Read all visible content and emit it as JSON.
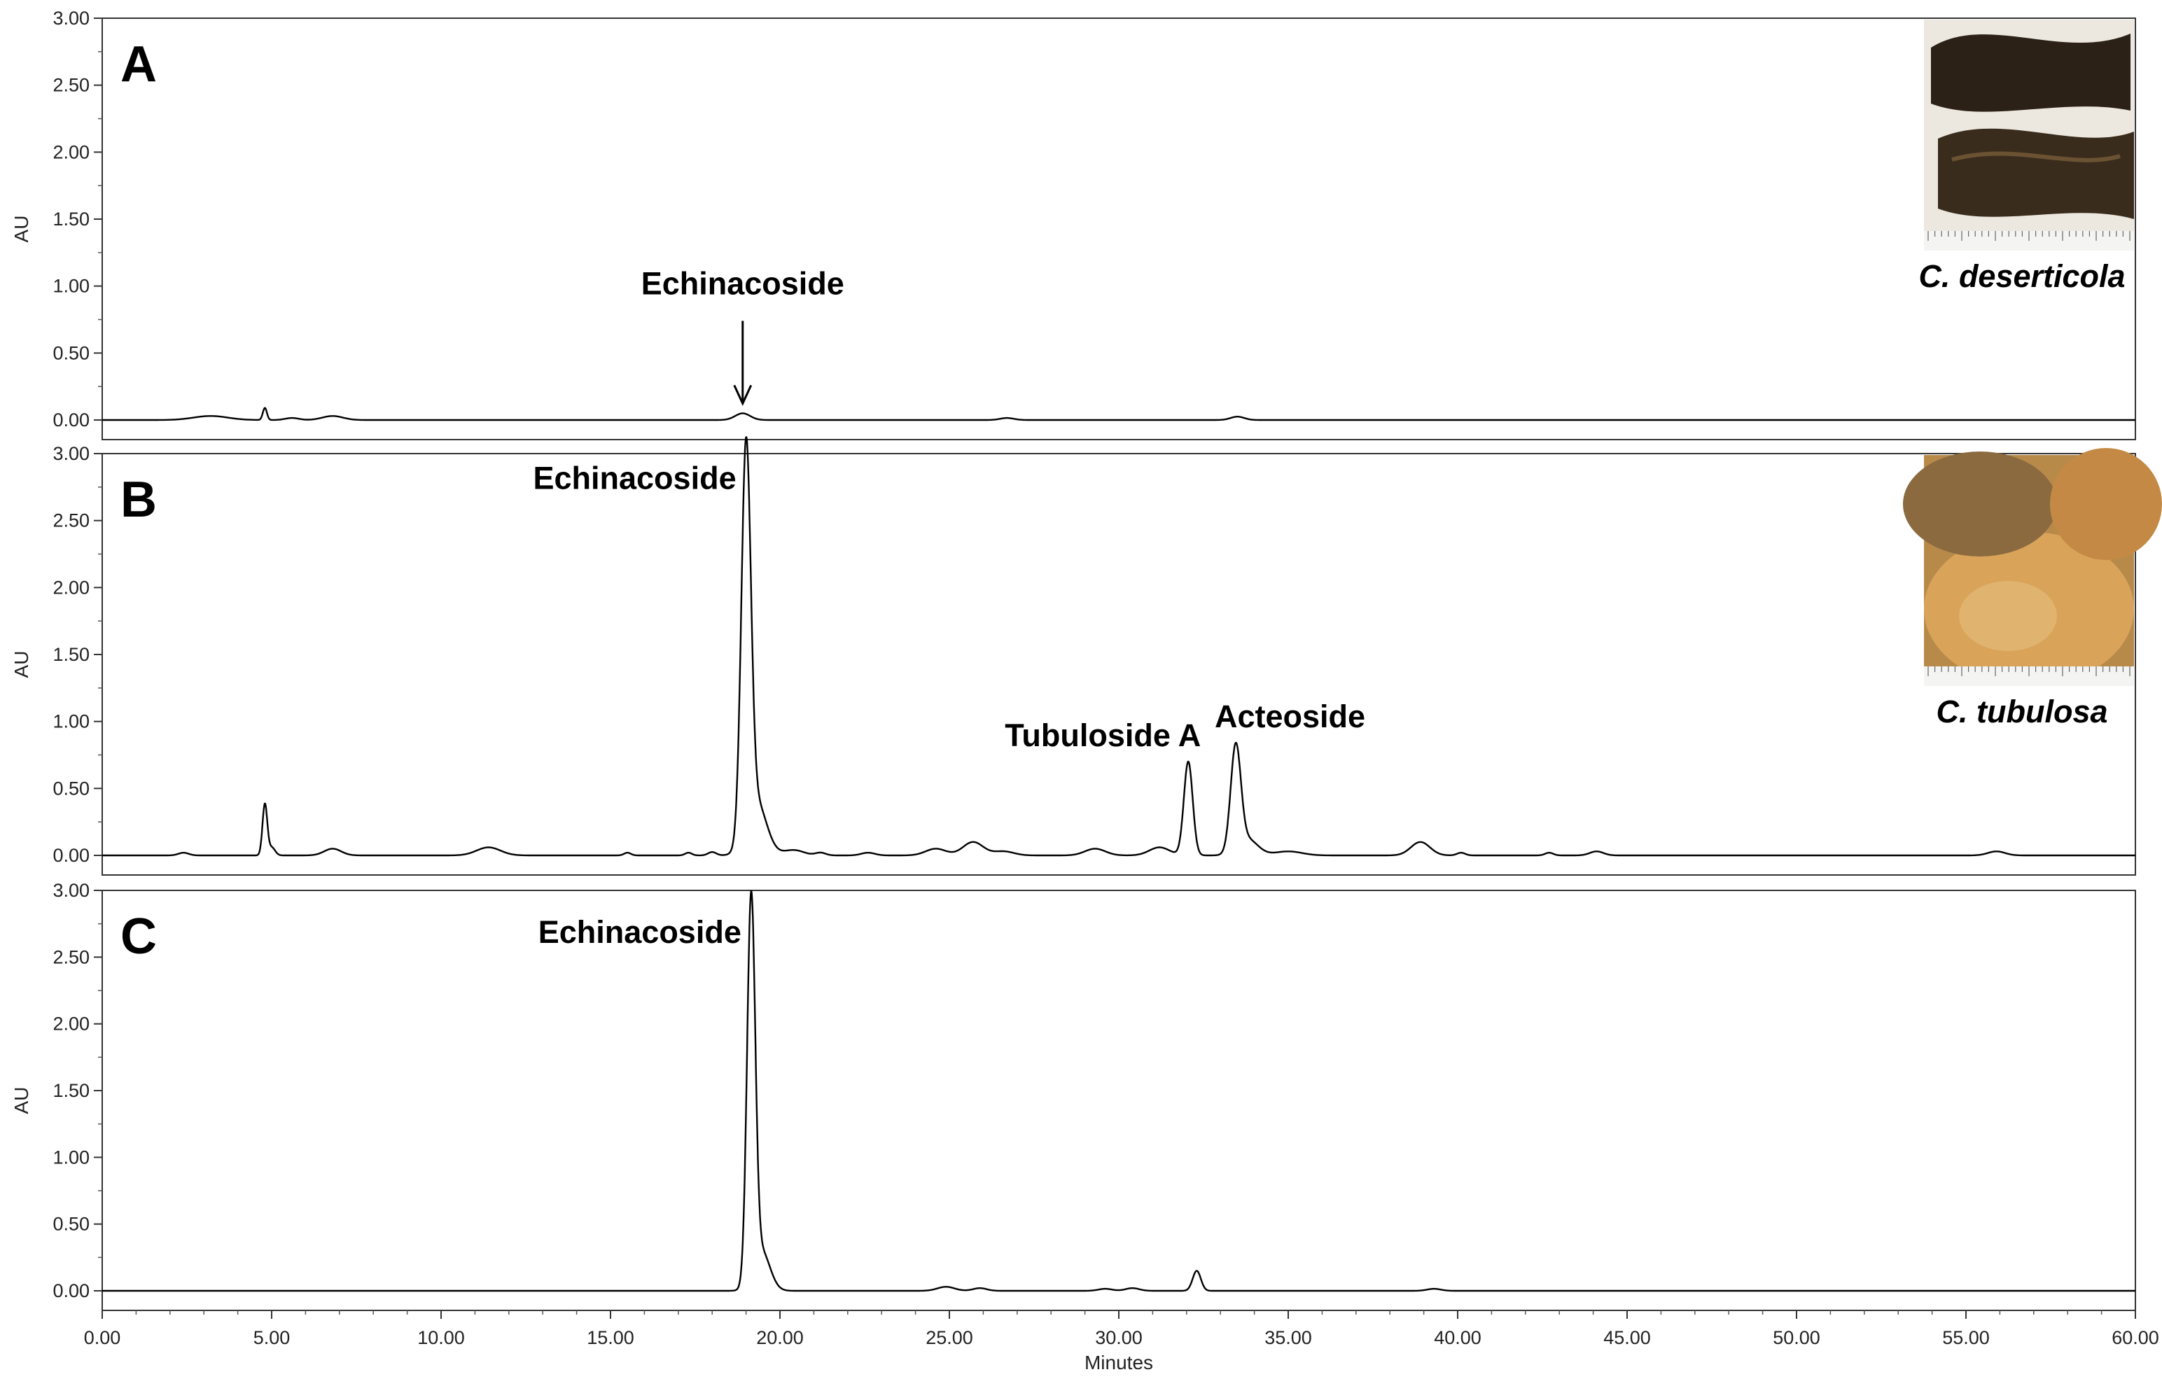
{
  "chart_data": {
    "type": "line",
    "x": {
      "label": "Minutes",
      "range": [
        0,
        60
      ],
      "ticks": [
        "0.00",
        "5.00",
        "10.00",
        "15.00",
        "20.00",
        "25.00",
        "30.00",
        "35.00",
        "40.00",
        "45.00",
        "50.00",
        "55.00",
        "60.00"
      ],
      "tick_values": [
        0,
        5,
        10,
        15,
        20,
        25,
        30,
        35,
        40,
        45,
        50,
        55,
        60
      ]
    },
    "panels": [
      {
        "letter": "A",
        "ylabel": "AU",
        "ylim": [
          0,
          3
        ],
        "y_ticks": [
          "0.00",
          "0.50",
          "1.00",
          "1.50",
          "2.00",
          "2.50",
          "3.00"
        ],
        "y_tick_values": [
          0,
          0.5,
          1,
          1.5,
          2,
          2.5,
          3
        ],
        "species": "C. deserticola",
        "photo": "dark-dried-stem-photo",
        "peaks": [
          {
            "t": 3.2,
            "h": 0.03,
            "w": 0.5
          },
          {
            "t": 4.8,
            "h": 0.09,
            "w": 0.06
          },
          {
            "t": 5.6,
            "h": 0.015,
            "w": 0.2
          },
          {
            "t": 6.8,
            "h": 0.03,
            "w": 0.3
          },
          {
            "t": 18.9,
            "h": 0.05,
            "w": 0.22
          },
          {
            "t": 26.7,
            "h": 0.015,
            "w": 0.2
          },
          {
            "t": 33.5,
            "h": 0.025,
            "w": 0.2
          }
        ],
        "annotations": [
          {
            "text": "Echinacoside",
            "t": 18.9,
            "arrow": true
          }
        ]
      },
      {
        "letter": "B",
        "ylabel": "AU",
        "ylim": [
          0,
          3
        ],
        "y_ticks": [
          "0.00",
          "0.50",
          "1.00",
          "1.50",
          "2.00",
          "2.50",
          "3.00"
        ],
        "y_tick_values": [
          0,
          0.5,
          1,
          1.5,
          2,
          2.5,
          3
        ],
        "species": "C. tubulosa",
        "photo": "light-tan-slice-photo",
        "peaks": [
          {
            "t": 2.4,
            "h": 0.02,
            "w": 0.15
          },
          {
            "t": 4.8,
            "h": 0.38,
            "w": 0.07
          },
          {
            "t": 5.0,
            "h": 0.06,
            "w": 0.1
          },
          {
            "t": 6.8,
            "h": 0.05,
            "w": 0.25
          },
          {
            "t": 11.4,
            "h": 0.06,
            "w": 0.35
          },
          {
            "t": 15.5,
            "h": 0.02,
            "w": 0.1
          },
          {
            "t": 17.3,
            "h": 0.02,
            "w": 0.1
          },
          {
            "t": 18.0,
            "h": 0.025,
            "w": 0.12
          },
          {
            "t": 19.0,
            "h": 2.88,
            "w": 0.14
          },
          {
            "t": 19.3,
            "h": 0.4,
            "w": 0.3
          },
          {
            "t": 20.4,
            "h": 0.04,
            "w": 0.3
          },
          {
            "t": 21.2,
            "h": 0.02,
            "w": 0.15
          },
          {
            "t": 22.6,
            "h": 0.02,
            "w": 0.2
          },
          {
            "t": 24.6,
            "h": 0.05,
            "w": 0.3
          },
          {
            "t": 25.7,
            "h": 0.1,
            "w": 0.3
          },
          {
            "t": 26.6,
            "h": 0.03,
            "w": 0.3
          },
          {
            "t": 29.3,
            "h": 0.05,
            "w": 0.3
          },
          {
            "t": 31.2,
            "h": 0.06,
            "w": 0.3
          },
          {
            "t": 32.05,
            "h": 0.7,
            "w": 0.13
          },
          {
            "t": 33.45,
            "h": 0.78,
            "w": 0.15
          },
          {
            "t": 33.8,
            "h": 0.12,
            "w": 0.3
          },
          {
            "t": 35.0,
            "h": 0.03,
            "w": 0.4
          },
          {
            "t": 38.9,
            "h": 0.1,
            "w": 0.28
          },
          {
            "t": 40.1,
            "h": 0.02,
            "w": 0.12
          },
          {
            "t": 42.7,
            "h": 0.02,
            "w": 0.12
          },
          {
            "t": 44.1,
            "h": 0.03,
            "w": 0.2
          },
          {
            "t": 55.9,
            "h": 0.03,
            "w": 0.25
          }
        ],
        "annotations": [
          {
            "text": "Echinacoside",
            "t": 19.0
          },
          {
            "text": "Tubuloside A",
            "t": 32.05
          },
          {
            "text": "Acteoside",
            "t": 33.45
          }
        ]
      },
      {
        "letter": "C",
        "ylabel": "AU",
        "ylim": [
          0,
          3
        ],
        "y_ticks": [
          "0.00",
          "0.50",
          "1.00",
          "1.50",
          "2.00",
          "2.50",
          "3.00"
        ],
        "y_tick_values": [
          0,
          0.5,
          1,
          1.5,
          2,
          2.5,
          3
        ],
        "species": "",
        "photo": "",
        "peaks": [
          {
            "t": 19.15,
            "h": 2.85,
            "w": 0.12
          },
          {
            "t": 19.45,
            "h": 0.3,
            "w": 0.25
          },
          {
            "t": 24.9,
            "h": 0.03,
            "w": 0.25
          },
          {
            "t": 25.9,
            "h": 0.02,
            "w": 0.2
          },
          {
            "t": 29.6,
            "h": 0.015,
            "w": 0.2
          },
          {
            "t": 30.4,
            "h": 0.02,
            "w": 0.2
          },
          {
            "t": 32.3,
            "h": 0.15,
            "w": 0.12
          },
          {
            "t": 39.3,
            "h": 0.015,
            "w": 0.2
          }
        ],
        "annotations": [
          {
            "text": "Echinacoside",
            "t": 19.15
          }
        ]
      }
    ]
  },
  "colors": {
    "trace": "#000000",
    "frame": "#333333",
    "photo_dark": "#2a2016",
    "photo_light": "#c89a55"
  }
}
